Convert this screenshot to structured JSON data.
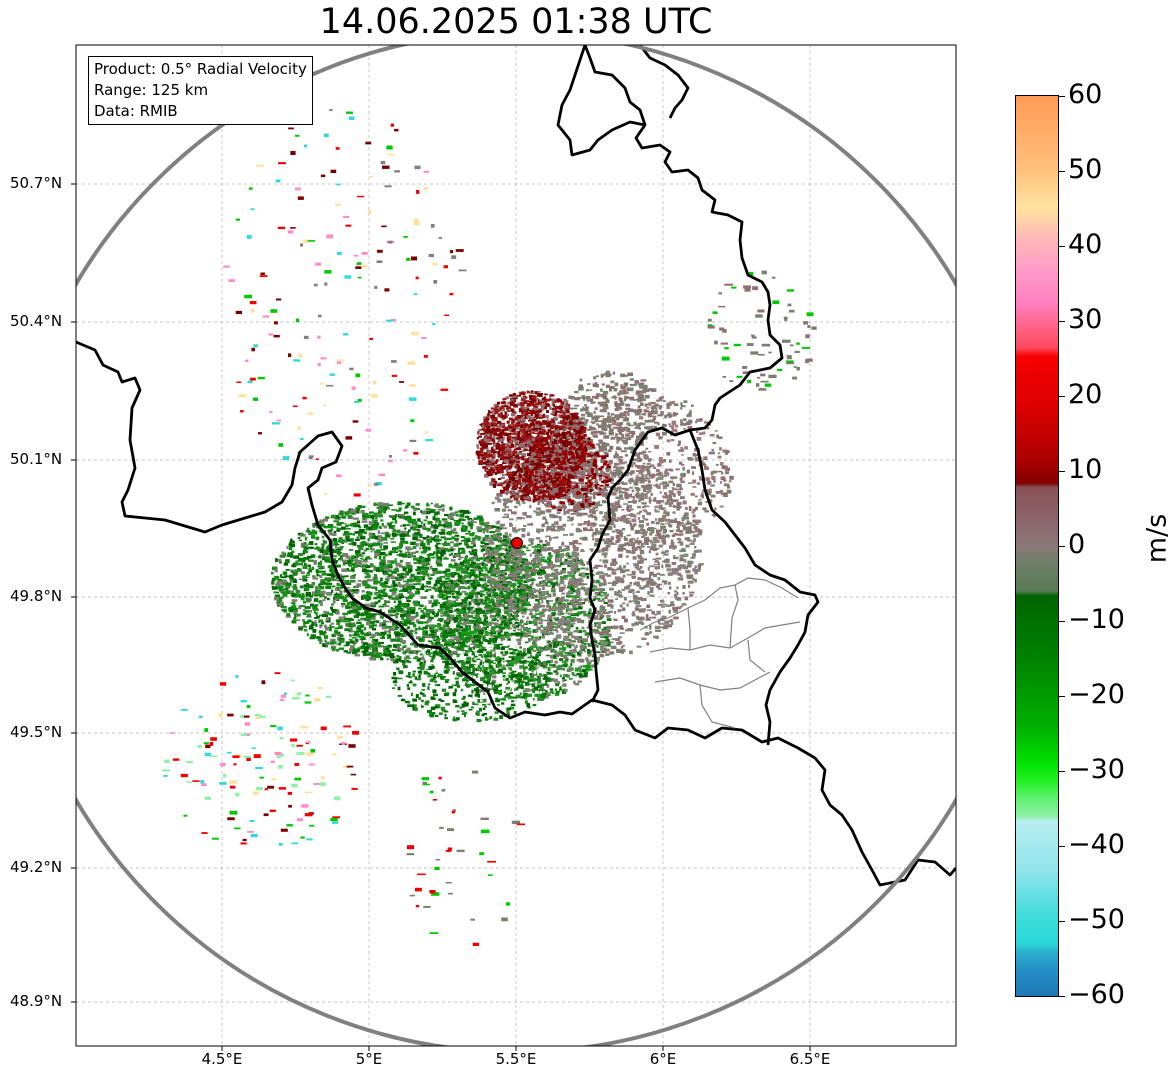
{
  "title": "14.06.2025 01:38 UTC",
  "info": {
    "product": "Product: 0.5° Radial Velocity",
    "range": "Range: 125 km",
    "data": "Data: RMIB"
  },
  "axes": {
    "y_ticks": [
      "50.7°N",
      "50.4°N",
      "50.1°N",
      "49.8°N",
      "49.5°N",
      "49.2°N",
      "48.9°N"
    ],
    "x_ticks": [
      "4.5°E",
      "5°E",
      "5.5°E",
      "6°E",
      "6.5°E"
    ],
    "lon_range": [
      4.0,
      7.0
    ],
    "lat_range": [
      48.8,
      51.0
    ]
  },
  "radar": {
    "site_lon": 5.505,
    "site_lat": 49.914,
    "range_km": 125
  },
  "colorbar": {
    "unit": "m/s",
    "ticks": [
      "60",
      "50",
      "40",
      "30",
      "20",
      "10",
      "0",
      "−10",
      "−20",
      "−30",
      "−40",
      "−50",
      "−60"
    ],
    "min": -60,
    "max": 60,
    "colors": {
      "outbound_strong": "#ff9f5a",
      "outbound_pale": "#ffe19b",
      "outbound_pink": "#ff8ac8",
      "outbound_red": "#f20000",
      "outbound_dark": "#7a0000",
      "zero_mauve": "#8e6f72",
      "zero_grey": "#7a7f70",
      "inbound_dark": "#006400",
      "inbound_green": "#00c800",
      "inbound_light": "#90f0a8",
      "inbound_cyan": "#30dada",
      "inbound_blue": "#1f77b4"
    }
  }
}
